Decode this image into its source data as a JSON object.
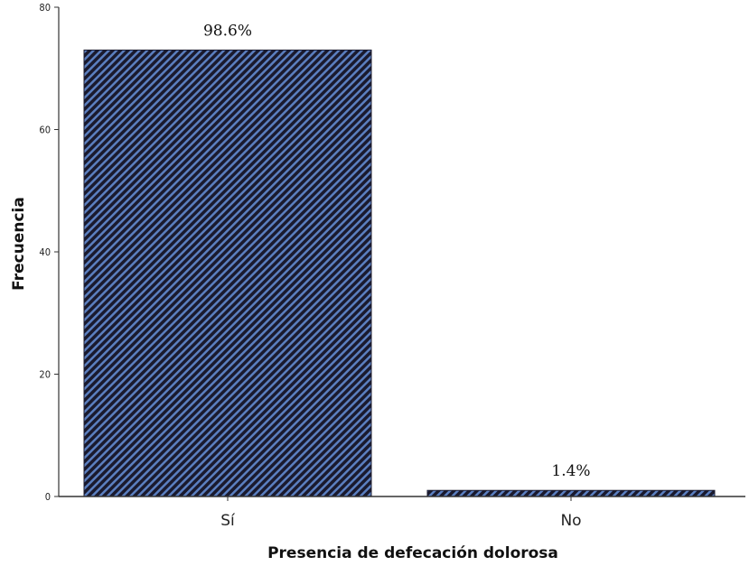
{
  "chart_data": {
    "type": "bar",
    "xlabel": "Presencia de defecación dolorosa",
    "ylabel": "Frecuencia",
    "categories": [
      "Sí",
      "No"
    ],
    "values": [
      73,
      1
    ],
    "data_labels": [
      "98.6%",
      "1.4%"
    ],
    "ylim": [
      0,
      80
    ],
    "yticks": [
      0,
      20,
      40,
      60,
      80
    ],
    "grid": false,
    "legend": "none",
    "bar_fill": "#5b7fc0",
    "bar_hatch": "#1a1a2e"
  }
}
